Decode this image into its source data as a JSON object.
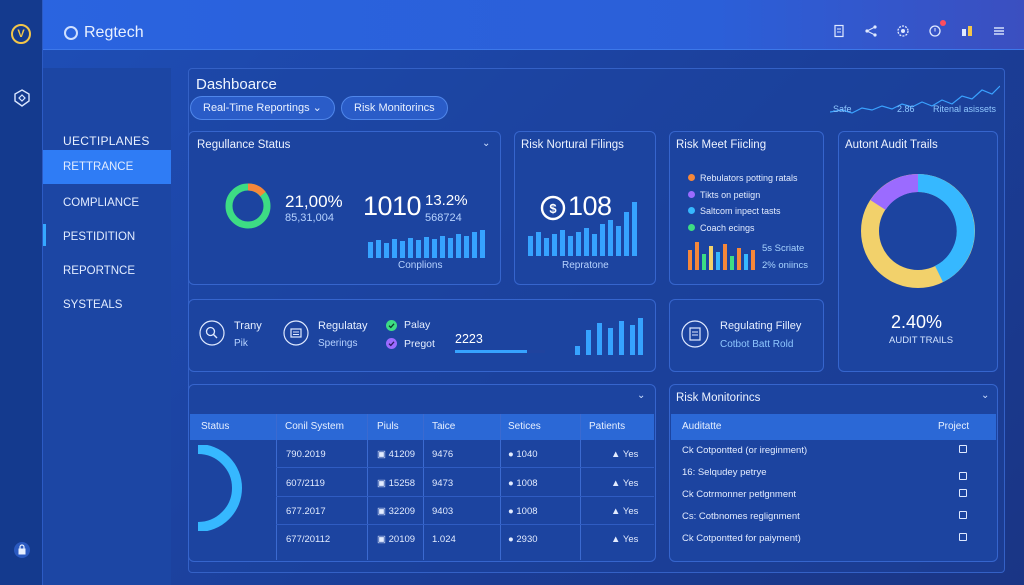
{
  "app": {
    "title": "Regtech"
  },
  "page": {
    "title": "Dashboarce",
    "tabs": [
      "Real-Time Reportings",
      "Risk Monitorincs"
    ]
  },
  "top_right": {
    "labels": [
      "Safe",
      "2.86",
      "Ritenal asissets"
    ]
  },
  "sidebar": {
    "heading": "UECTIPLANES",
    "items": [
      "RETTRANCE",
      "COMPLIANCE",
      "PESTIDITION",
      "REPORTNCE",
      "SYSTEALS"
    ]
  },
  "cards": {
    "regulance": {
      "title": "Regullance Status",
      "pct": "21,00%",
      "sub": "85,31,004",
      "big": "1010",
      "pct2": "13.2%",
      "sub2": "568724",
      "caption": "Conplions"
    },
    "risk_filings": {
      "title": "Risk Nortural Filings",
      "big": "108",
      "caption": "Repratone"
    },
    "risk_meet": {
      "title": "Risk Meet Fiicling",
      "legend": [
        "Rebulators potting ratals",
        "Tikts on petiign",
        "Saltcom inpect tasts",
        "Coach ecings"
      ],
      "legend_colors": [
        "#f5873a",
        "#9b6bff",
        "#36b8ff",
        "#3ddc84"
      ],
      "note1": "5s Scriate",
      "note2": "2% oniincs"
    },
    "audit": {
      "title": "Autont Audit Trails",
      "pct": "2.40%",
      "caption": "AUDIT TRAILS"
    },
    "mid_left": {
      "item1_a": "Trany",
      "item1_b": "Pik",
      "item2_a": "Regulatay",
      "item2_b": "Sperings",
      "item3_a": "Palay",
      "item3_b": "Pregot",
      "value": "2223"
    },
    "mid_right": {
      "title": "Regulating Filley",
      "sub": "Cotbot Batt Rold"
    }
  },
  "table": {
    "headers": [
      "Status",
      "Conil System",
      "Piuls",
      "Taice",
      "Setices",
      "Patients"
    ],
    "rows": [
      [
        "790.2019",
        "41209",
        "9476",
        "1040",
        "Yes"
      ],
      [
        "607/2119",
        "15258",
        "9473",
        "1008",
        "Yes"
      ],
      [
        "677.2017",
        "32209",
        "9403",
        "1008",
        "Yes"
      ],
      [
        "677/20112",
        "20109",
        "1.024",
        "2930",
        "Yes"
      ]
    ]
  },
  "monitor": {
    "title": "Risk Monitorincs",
    "headers": [
      "Auditatte",
      "Project"
    ],
    "rows": [
      "Ck Cotpontted (or ireginment)",
      "16: Selqudey petrye",
      "Ck Cotrmonner petlgnment",
      "Cs: Cotbnomes reglignment",
      "Ck Cotpontted for paiyment)"
    ]
  },
  "colors": {
    "accent": "#35a8ff",
    "green": "#3ddc84",
    "orange": "#f5873a",
    "purple": "#9b6bff",
    "yellow": "#f2d16b"
  }
}
